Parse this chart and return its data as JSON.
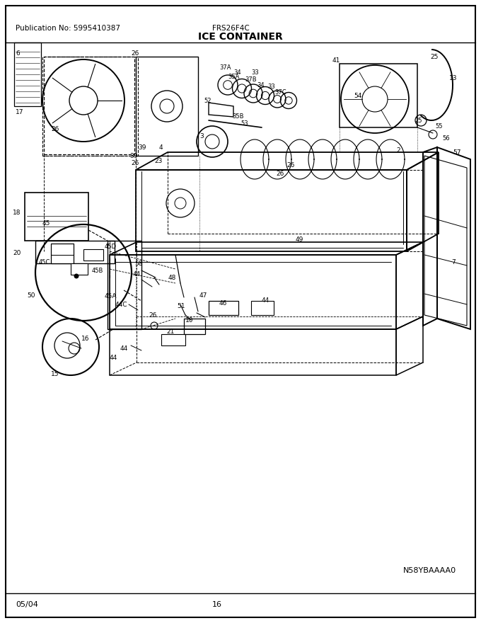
{
  "pub_no": "Publication No: 5995410387",
  "model": "FRS26F4C",
  "title": "ICE CONTAINER",
  "part_no_image": "N58YBAAAA0",
  "date": "05/04",
  "page": "16",
  "bg_color": "#ffffff",
  "fig_width": 6.8,
  "fig_height": 8.8,
  "dpi": 100
}
